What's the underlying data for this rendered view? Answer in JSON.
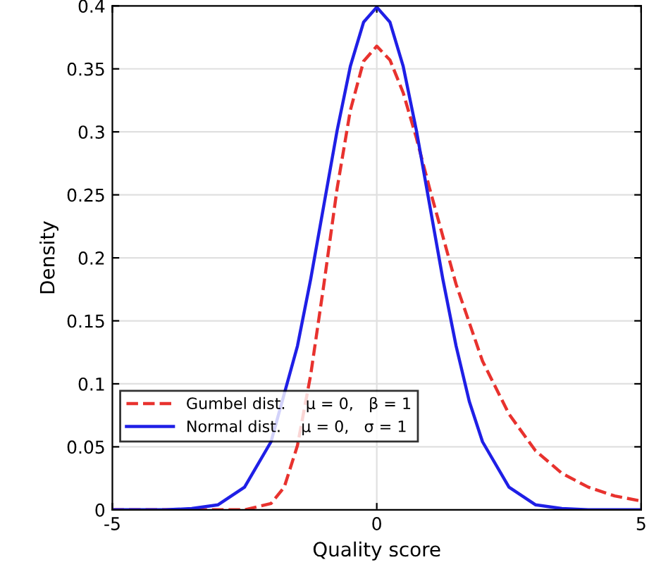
{
  "chart_data": {
    "type": "line",
    "xlabel": "Quality score",
    "ylabel": "Density",
    "xlim": [
      -5,
      5
    ],
    "ylim": [
      0,
      0.4
    ],
    "xticks": [
      -5,
      0,
      5
    ],
    "yticks": [
      0,
      0.05,
      0.1,
      0.15,
      0.2,
      0.25,
      0.3,
      0.35,
      0.4
    ],
    "grid": true,
    "legend": "bottom left",
    "marker": "none",
    "series": [
      {
        "name": "Gumbel dist.    μ = 0,   β = 1",
        "color": "#e8322e",
        "line_style": "dashed",
        "x": [
          -5,
          -3,
          -2.5,
          -2,
          -1.75,
          -1.5,
          -1.25,
          -1,
          -0.75,
          -0.5,
          -0.25,
          0,
          0.25,
          0.5,
          0.75,
          1,
          1.5,
          2,
          2.5,
          3,
          3.5,
          4,
          4.5,
          5
        ],
        "values": [
          0,
          0,
          0,
          0.005,
          0.018,
          0.051,
          0.107,
          0.179,
          0.255,
          0.317,
          0.356,
          0.368,
          0.357,
          0.331,
          0.295,
          0.255,
          0.179,
          0.118,
          0.076,
          0.047,
          0.029,
          0.018,
          0.011,
          0.007
        ]
      },
      {
        "name": "Normal dist.    μ = 0,   σ = 1",
        "color": "#1f1fe6",
        "line_style": "solid",
        "x": [
          -5,
          -4,
          -3.5,
          -3,
          -2.5,
          -2,
          -1.5,
          -1.25,
          -1,
          -0.75,
          -0.5,
          -0.25,
          0,
          0.25,
          0.5,
          0.75,
          1,
          1.25,
          1.5,
          1.75,
          2,
          2.5,
          3,
          3.5,
          4,
          5
        ],
        "values": [
          0,
          0,
          0.001,
          0.004,
          0.018,
          0.054,
          0.13,
          0.183,
          0.242,
          0.301,
          0.352,
          0.387,
          0.399,
          0.387,
          0.352,
          0.301,
          0.242,
          0.183,
          0.13,
          0.086,
          0.054,
          0.018,
          0.004,
          0.001,
          0,
          0
        ]
      }
    ]
  }
}
